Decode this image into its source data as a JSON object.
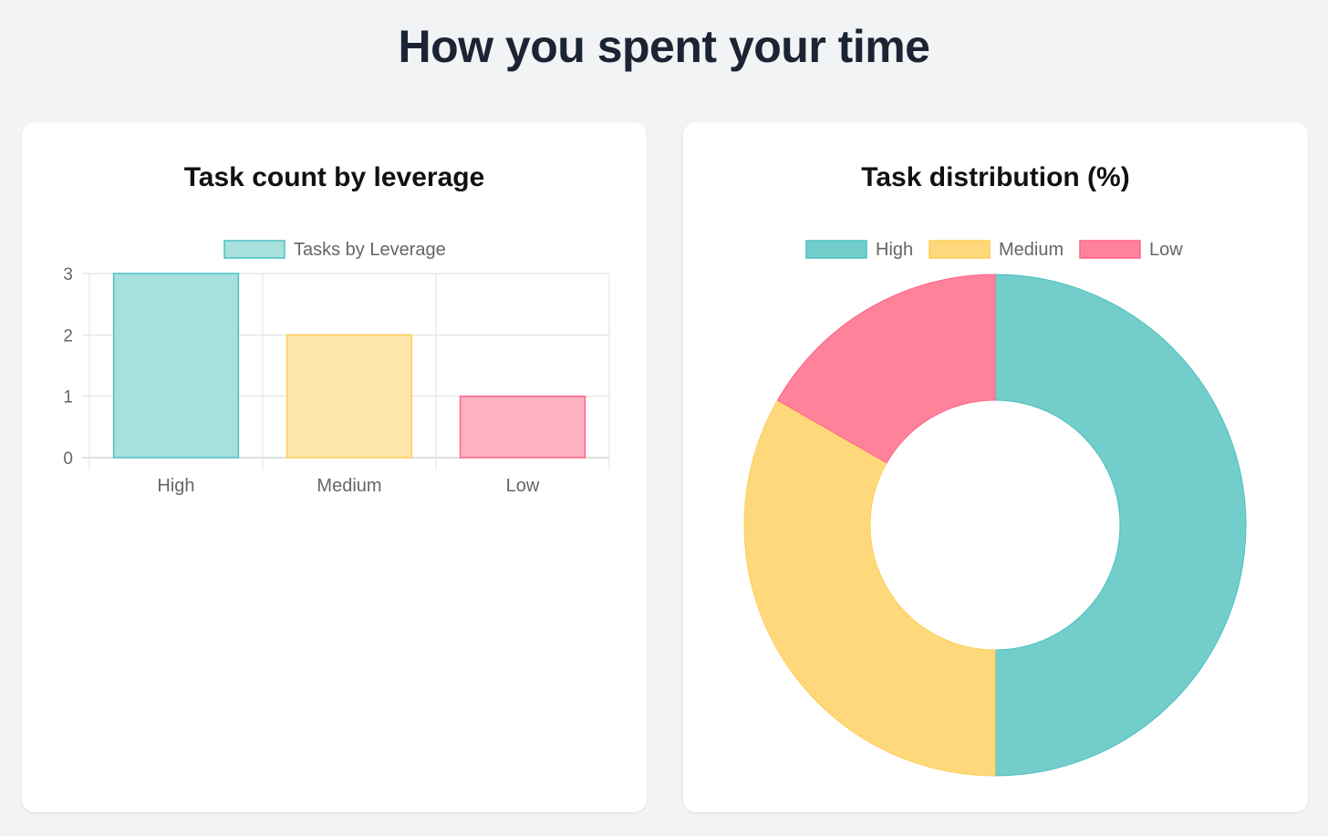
{
  "page": {
    "title": "How you spent your time"
  },
  "colors": {
    "background": "#f2f3f5",
    "card": "#ffffff",
    "high_fill": "#a8e0de",
    "high_border": "#4bc0c0",
    "high_slice": "#73cdcb",
    "medium_fill": "#fee6ab",
    "medium_border": "#ffcd56",
    "medium_slice": "#ffd87b",
    "low_fill": "#ffb1c2",
    "low_border": "#ff6384",
    "low_slice": "#ff829b"
  },
  "chart_data": [
    {
      "type": "bar",
      "title": "Task count by leverage",
      "categories": [
        "High",
        "Medium",
        "Low"
      ],
      "series": [
        {
          "name": "Tasks by Leverage",
          "values": [
            3,
            2,
            1
          ]
        }
      ],
      "ylim": [
        0,
        3
      ],
      "yticks": [
        "0",
        "1",
        "2",
        "3"
      ],
      "grid": true,
      "legend": "top"
    },
    {
      "type": "pie",
      "title": "Task distribution (%)",
      "labels": [
        "High",
        "Medium",
        "Low"
      ],
      "values": [
        50,
        33.3,
        16.7
      ],
      "legend": "top"
    }
  ]
}
